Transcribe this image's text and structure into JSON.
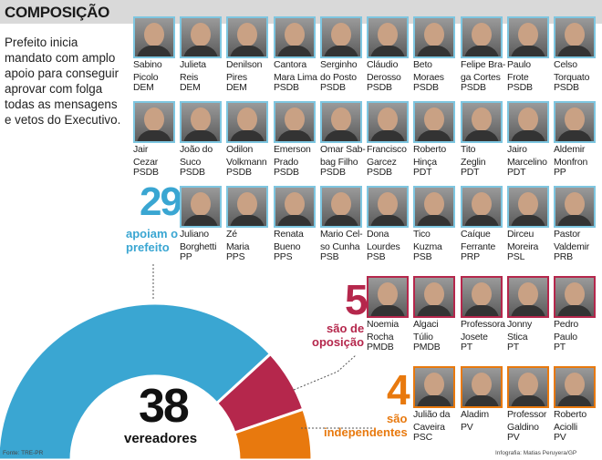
{
  "header": {
    "title": "COMPOSIÇÃO"
  },
  "intro": "Prefeito inicia mandato com amplo apoio para conseguir aprovar com folga todas as mensagens e vetos do Executivo.",
  "colors": {
    "support": "#3aa6d2",
    "opposition": "#b5274c",
    "independent": "#e8790e"
  },
  "groups": {
    "support": {
      "number": "29",
      "label_line1": "apoiam o",
      "label_line2": "prefeito"
    },
    "opposition": {
      "number": "5",
      "label_line1": "são de",
      "label_line2": "oposição"
    },
    "independent": {
      "number": "4",
      "label_line1": "são",
      "label_line2": "independentes"
    }
  },
  "total": {
    "number": "38",
    "label": "vereadores"
  },
  "chart_data": {
    "type": "pie",
    "categories": [
      "apoiam o prefeito",
      "são de oposição",
      "são independentes"
    ],
    "values": [
      29,
      5,
      4
    ],
    "total": 38
  },
  "row1": [
    {
      "name1": "Sabino",
      "name2": "Picolo",
      "party": "DEM"
    },
    {
      "name1": "Julieta",
      "name2": "Reis",
      "party": "DEM"
    },
    {
      "name1": "Denilson",
      "name2": "Pires",
      "party": "DEM"
    },
    {
      "name1": "Cantora",
      "name2": "Mara Lima",
      "party": "PSDB"
    },
    {
      "name1": "Serginho",
      "name2": "do Posto",
      "party": "PSDB"
    },
    {
      "name1": "Cláudio",
      "name2": "Derosso",
      "party": "PSDB"
    },
    {
      "name1": "Beto",
      "name2": "Moraes",
      "party": "PSDB"
    },
    {
      "name1": "Felipe Bra-",
      "name2": "ga Cortes",
      "party": "PSDB"
    },
    {
      "name1": "Paulo",
      "name2": "Frote",
      "party": "PSDB"
    },
    {
      "name1": "Celso",
      "name2": "Torquato",
      "party": "PSDB"
    }
  ],
  "row2": [
    {
      "name1": "Jair",
      "name2": "Cezar",
      "party": "PSDB"
    },
    {
      "name1": "João do",
      "name2": "Suco",
      "party": "PSDB"
    },
    {
      "name1": "Odilon",
      "name2": "Volkmann",
      "party": "PSDB"
    },
    {
      "name1": "Emerson",
      "name2": "Prado",
      "party": "PSDB"
    },
    {
      "name1": "Omar Sab-",
      "name2": "bag Filho",
      "party": "PSDB"
    },
    {
      "name1": "Francisco",
      "name2": "Garcez",
      "party": "PSDB"
    },
    {
      "name1": "Roberto",
      "name2": "Hinça",
      "party": "PDT"
    },
    {
      "name1": "Tito",
      "name2": "Zeglin",
      "party": "PDT"
    },
    {
      "name1": "Jairo",
      "name2": "Marcelino",
      "party": "PDT"
    },
    {
      "name1": "Aldemir",
      "name2": "Monfron",
      "party": "PP"
    }
  ],
  "row3": [
    {
      "name1": "Juliano",
      "name2": "Borghetti",
      "party": "PP"
    },
    {
      "name1": "Zé",
      "name2": "Maria",
      "party": "PPS"
    },
    {
      "name1": "Renata",
      "name2": "Bueno",
      "party": "PPS"
    },
    {
      "name1": "Mario Cel-",
      "name2": "so Cunha",
      "party": "PSB"
    },
    {
      "name1": "Dona",
      "name2": "Lourdes",
      "party": "PSB"
    },
    {
      "name1": "Tico",
      "name2": "Kuzma",
      "party": "PSB"
    },
    {
      "name1": "Caíque",
      "name2": "Ferrante",
      "party": "PRP"
    },
    {
      "name1": "Dirceu",
      "name2": "Moreira",
      "party": "PSL"
    },
    {
      "name1": "Pastor",
      "name2": "Valdemir",
      "party": "PRB"
    }
  ],
  "opposition_members": [
    {
      "name1": "Noemia",
      "name2": "Rocha",
      "party": "PMDB"
    },
    {
      "name1": "Algaci",
      "name2": "Túlio",
      "party": "PMDB"
    },
    {
      "name1": "Professora",
      "name2": "Josete",
      "party": "PT"
    },
    {
      "name1": "Jonny",
      "name2": "Stica",
      "party": "PT"
    },
    {
      "name1": "Pedro",
      "name2": "Paulo",
      "party": "PT"
    }
  ],
  "independent_members": [
    {
      "name1": "Julião da",
      "name2": "Caveira",
      "party": "PSC"
    },
    {
      "name1": "Aladim",
      "name2": "",
      "party": "PV"
    },
    {
      "name1": "Professor",
      "name2": "Galdino",
      "party": "PV"
    },
    {
      "name1": "Roberto",
      "name2": "Aciolli",
      "party": "PV"
    }
  ],
  "footer": {
    "source": "Fonte: TRE-PR",
    "credit": "Infografia: Matias Peruyera/GP"
  }
}
